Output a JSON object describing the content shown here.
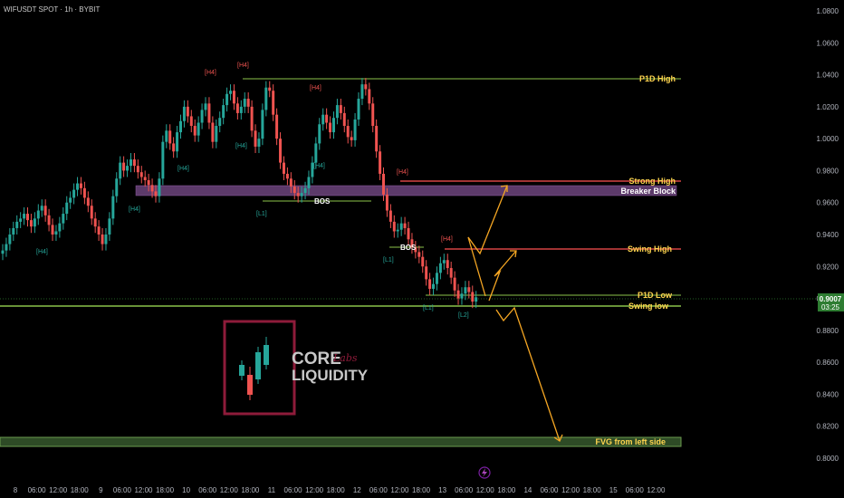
{
  "header": {
    "title": "WIFUSDT SPOT · 1h · BYBIT"
  },
  "price_axis": {
    "ticks": [
      0.8,
      0.82,
      0.84,
      0.86,
      0.88,
      0.9,
      0.92,
      0.94,
      0.96,
      0.98,
      1.0,
      1.02,
      1.04,
      1.06,
      1.08
    ],
    "labels": [
      "0.8000",
      "0.8200",
      "0.8400",
      "0.8600",
      "0.8800",
      "0.9000",
      "0.9200",
      "0.9400",
      "0.9600",
      "0.9800",
      "1.0000",
      "1.0200",
      "1.0400",
      "1.0600",
      "1.0800"
    ],
    "current_price": "0.9007",
    "countdown": "03:25"
  },
  "time_axis": {
    "labels": [
      "8",
      "06:00",
      "12:00",
      "18:00",
      "9",
      "06:00",
      "12:00",
      "18:00",
      "10",
      "06:00",
      "12:00",
      "18:00",
      "11",
      "06:00",
      "12:00",
      "18:00",
      "12",
      "06:00",
      "12:00",
      "18:00",
      "13",
      "06:00",
      "12:00",
      "18:00",
      "14",
      "06:00",
      "12:00",
      "18:00",
      "15",
      "06:00",
      "12:00"
    ],
    "bars": [
      0,
      6,
      12,
      18,
      24,
      30,
      36,
      42,
      48,
      54,
      60,
      66,
      72,
      78,
      84,
      90,
      96,
      102,
      108,
      114,
      120,
      126,
      132,
      138,
      144,
      150,
      156,
      162,
      168,
      174,
      180
    ]
  },
  "levels": {
    "p1d_high": {
      "label": "P1D High",
      "price": 1.0385
    },
    "strong_high": {
      "label": "Strong High",
      "price": 0.9732
    },
    "breaker_block": {
      "label": "Breaker Block",
      "top": 0.9704,
      "bottom": 0.9636
    },
    "swing_high": {
      "label": "Swing High",
      "price": 0.9306
    },
    "p1d_low": {
      "label": "P1D Low",
      "price": 0.9018
    },
    "swing_low": {
      "label": "Swing low",
      "price": 0.8946
    },
    "fvg": {
      "label": "FVG from left side",
      "top": 0.8122,
      "bottom": 0.8064
    },
    "bos_1": {
      "label": "BOS",
      "price": 0.9613
    },
    "bos_2": {
      "label": "BOS",
      "price": 0.9313
    }
  },
  "markers": {
    "fractal_top": "[H4]",
    "fractal_bottom": "[H4]",
    "low_tag_1": "[L1]",
    "low_tag_2": "[L2]"
  },
  "logo": {
    "word1": "CORE",
    "script": "Labs",
    "word2": "LIQUIDITY"
  },
  "colors": {
    "bull": "#26a69a",
    "bear": "#ef5350",
    "level_green": "#8bc34a",
    "level_red": "#ff5252",
    "breaker": "#5c3a6a",
    "fvg": "#2e4b26",
    "projection": "#f5a623",
    "label_text": "#ffd54f",
    "logo_border": "#8e1b3a",
    "price_tag": "#2e7d32"
  },
  "chart_data": {
    "type": "candlestick",
    "title": "WIFUSDT SPOT · 1h · BYBIT",
    "ylim": [
      0.8,
      1.08
    ],
    "y_scale": "linear",
    "grid": false,
    "projections": [
      {
        "from_bar": 154,
        "to_bar": 167,
        "to_price": 0.9725
      },
      {
        "from_bar": 154,
        "to_bar": 164,
        "to_price": 0.931
      },
      {
        "from_bar": 158,
        "to_bar": 176,
        "to_price": 0.811
      }
    ],
    "close": [
      0.93,
      0.934,
      0.94,
      0.944,
      0.948,
      0.95,
      0.953,
      0.949,
      0.945,
      0.95,
      0.955,
      0.958,
      0.952,
      0.946,
      0.94,
      0.942,
      0.947,
      0.953,
      0.96,
      0.963,
      0.968,
      0.972,
      0.969,
      0.963,
      0.958,
      0.95,
      0.945,
      0.94,
      0.934,
      0.94,
      0.95,
      0.964,
      0.975,
      0.985,
      0.98,
      0.983,
      0.987,
      0.983,
      0.979,
      0.976,
      0.974,
      0.971,
      0.967,
      0.964,
      0.975,
      0.998,
      1.005,
      0.997,
      0.992,
      1.004,
      1.011,
      1.02,
      1.014,
      1.008,
      1.002,
      1.01,
      1.018,
      1.022,
      1.01,
      0.998,
      1.008,
      1.013,
      1.021,
      1.028,
      1.03,
      1.022,
      1.016,
      1.02,
      1.025,
      1.02,
      1.005,
      0.995,
      1.0,
      1.018,
      1.032,
      1.03,
      1.015,
      1.0,
      0.985,
      0.978,
      0.975,
      0.97,
      0.966,
      0.964,
      0.966,
      0.969,
      0.976,
      0.985,
      0.997,
      1.009,
      1.015,
      1.01,
      1.004,
      1.013,
      1.021,
      1.016,
      1.008,
      1.001,
      0.999,
      1.012,
      1.025,
      1.034,
      1.031,
      1.022,
      1.008,
      0.992,
      0.978,
      0.965,
      0.955,
      0.948,
      0.942,
      0.943,
      0.947,
      0.944,
      0.937,
      0.932,
      0.929,
      0.926,
      0.92,
      0.912,
      0.906,
      0.909,
      0.916,
      0.922,
      0.924,
      0.919,
      0.913,
      0.905,
      0.9,
      0.903,
      0.907,
      0.904,
      0.898,
      0.9007
    ],
    "open": [
      0.928,
      0.93,
      0.934,
      0.94,
      0.944,
      0.948,
      0.95,
      0.953,
      0.949,
      0.945,
      0.95,
      0.955,
      0.958,
      0.952,
      0.946,
      0.94,
      0.942,
      0.947,
      0.953,
      0.96,
      0.963,
      0.968,
      0.972,
      0.969,
      0.963,
      0.958,
      0.95,
      0.945,
      0.94,
      0.934,
      0.94,
      0.95,
      0.964,
      0.975,
      0.985,
      0.98,
      0.983,
      0.987,
      0.983,
      0.979,
      0.976,
      0.974,
      0.971,
      0.967,
      0.964,
      0.975,
      0.998,
      1.005,
      0.997,
      0.992,
      1.004,
      1.011,
      1.02,
      1.014,
      1.008,
      1.002,
      1.01,
      1.018,
      1.022,
      1.01,
      0.998,
      1.008,
      1.013,
      1.021,
      1.028,
      1.03,
      1.022,
      1.016,
      1.02,
      1.025,
      1.02,
      1.005,
      0.995,
      1.0,
      1.018,
      1.032,
      1.03,
      1.015,
      1.0,
      0.985,
      0.978,
      0.975,
      0.97,
      0.966,
      0.964,
      0.966,
      0.969,
      0.976,
      0.985,
      0.997,
      1.009,
      1.015,
      1.01,
      1.004,
      1.013,
      1.021,
      1.016,
      1.008,
      1.001,
      0.999,
      1.012,
      1.025,
      1.034,
      1.031,
      1.022,
      1.008,
      0.992,
      0.978,
      0.965,
      0.955,
      0.948,
      0.942,
      0.943,
      0.947,
      0.944,
      0.937,
      0.932,
      0.929,
      0.926,
      0.92,
      0.912,
      0.906,
      0.909,
      0.916,
      0.922,
      0.924,
      0.919,
      0.913,
      0.905,
      0.9,
      0.903,
      0.907,
      0.904,
      0.898
    ]
  }
}
